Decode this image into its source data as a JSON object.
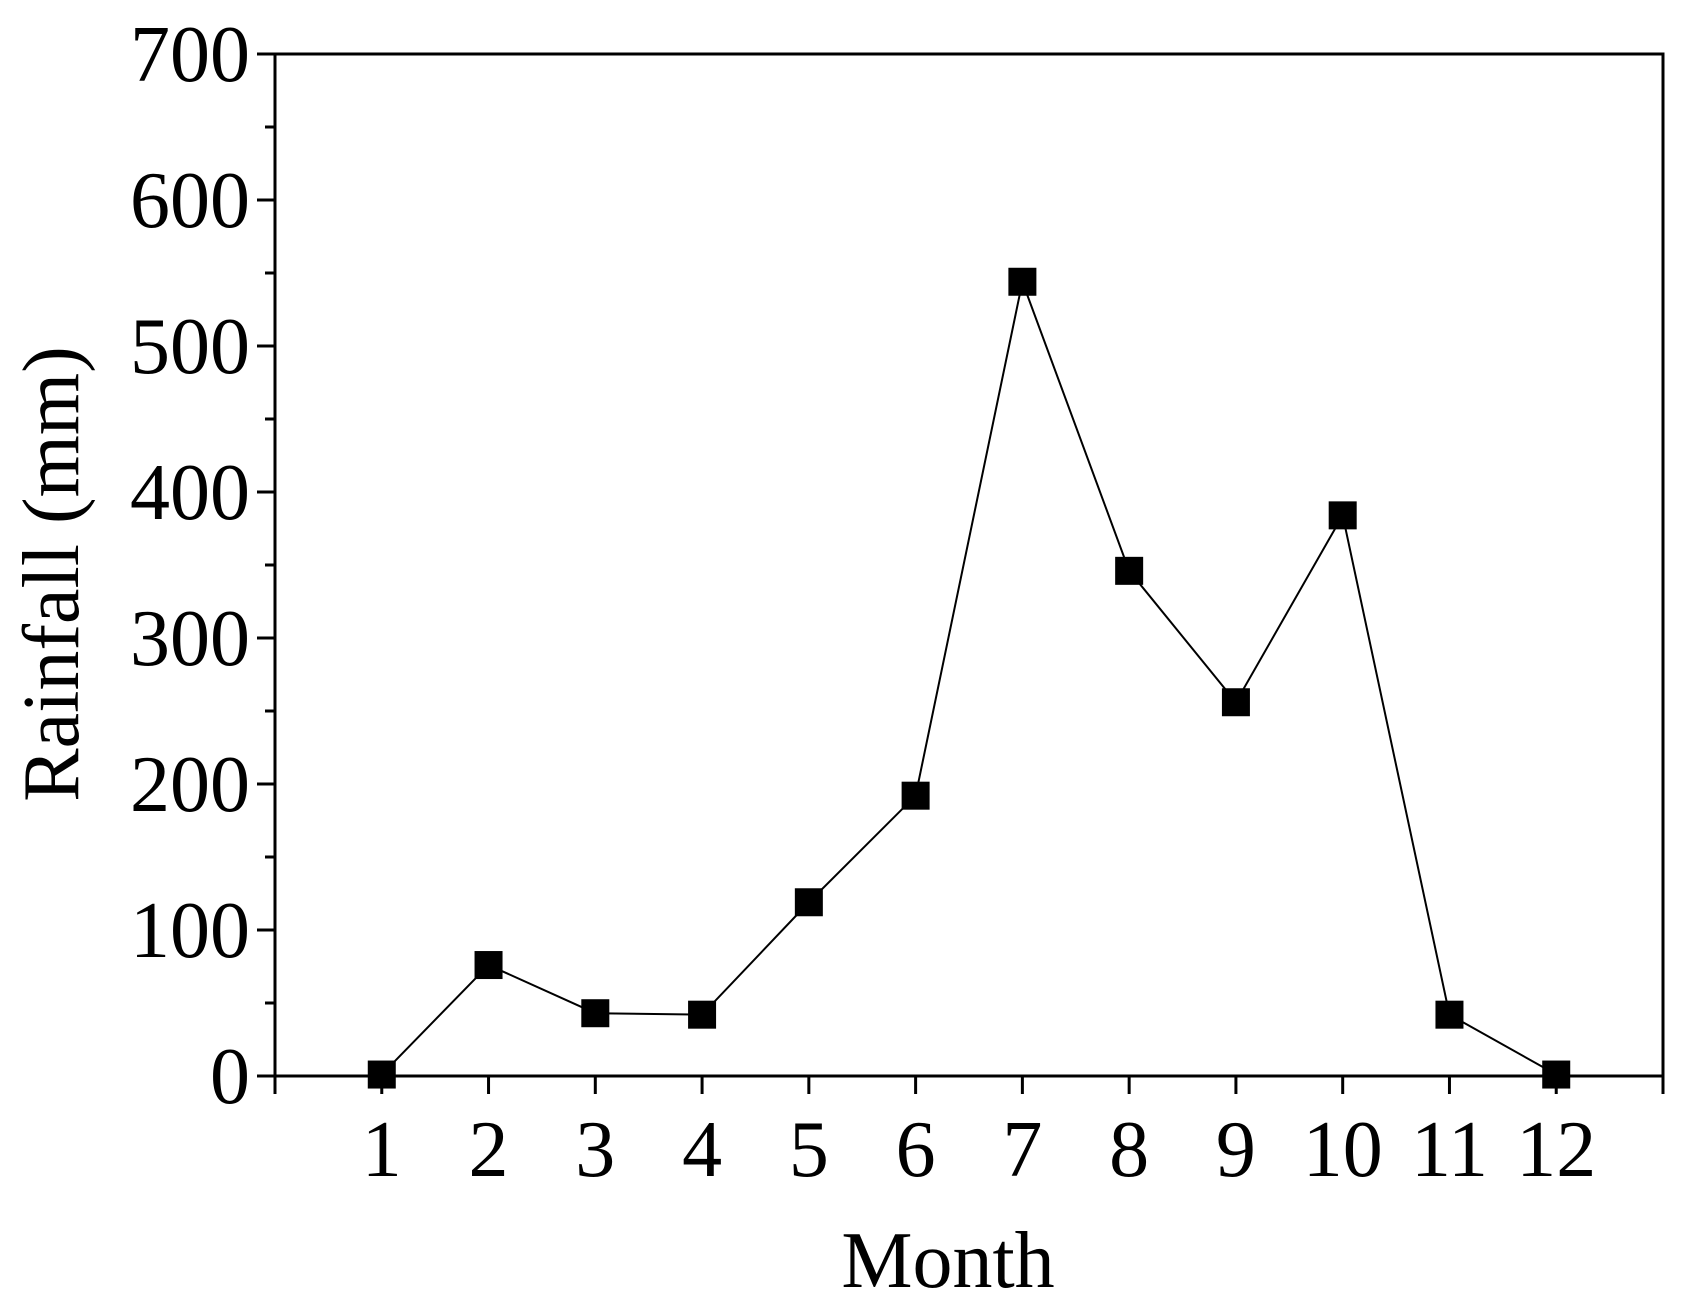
{
  "chart_data": {
    "type": "line",
    "xlabel": "Month",
    "ylabel": "Rainfall (mm)",
    "xlim": [
      0,
      13
    ],
    "ylim": [
      0,
      700
    ],
    "x_ticks": [
      1,
      2,
      3,
      4,
      5,
      6,
      7,
      8,
      9,
      10,
      11,
      12
    ],
    "y_ticks": [
      0,
      100,
      200,
      300,
      400,
      500,
      600,
      700
    ],
    "y_minor_step": 50,
    "grid": false,
    "series": [
      {
        "marker": "square",
        "color": "#000000",
        "x": [
          1,
          2,
          3,
          4,
          5,
          6,
          7,
          8,
          9,
          10,
          11,
          12
        ],
        "y": [
          1,
          76,
          43,
          42,
          119,
          192,
          544,
          346,
          256,
          384,
          42,
          1
        ]
      }
    ]
  }
}
